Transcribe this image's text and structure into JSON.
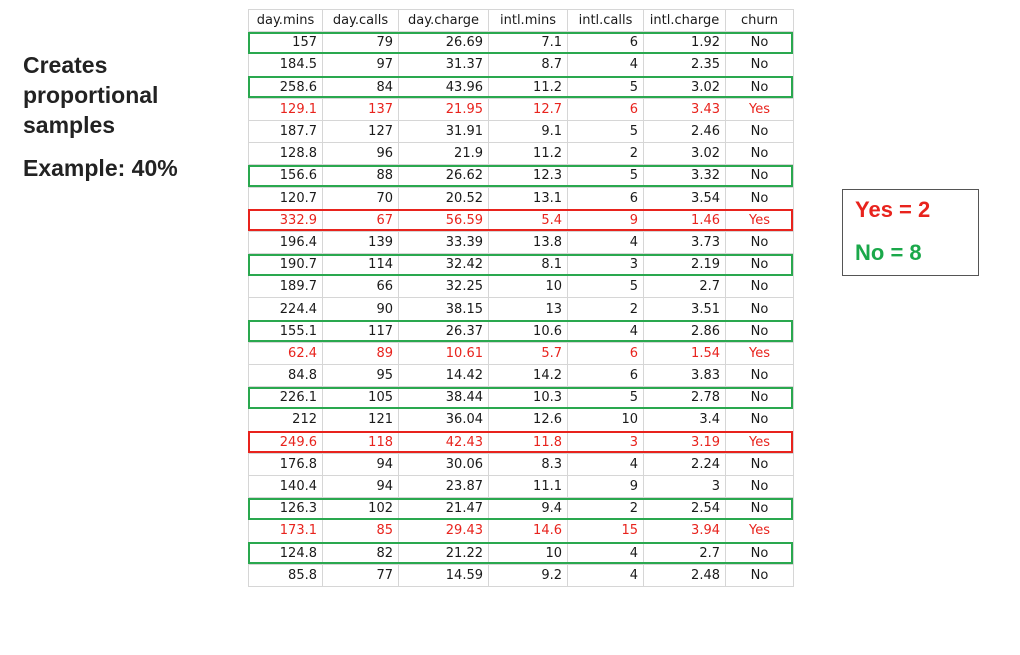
{
  "heading": {
    "lines": [
      "Creates",
      "proportional",
      "samples"
    ],
    "example": "Example: 40%"
  },
  "table": {
    "columns": [
      "day.mins",
      "day.calls",
      "day.charge",
      "intl.mins",
      "intl.calls",
      "intl.charge",
      "churn"
    ],
    "rows": [
      [
        "157",
        "79",
        "26.69",
        "7.1",
        "6",
        "1.92",
        "No"
      ],
      [
        "184.5",
        "97",
        "31.37",
        "8.7",
        "4",
        "2.35",
        "No"
      ],
      [
        "258.6",
        "84",
        "43.96",
        "11.2",
        "5",
        "3.02",
        "No"
      ],
      [
        "129.1",
        "137",
        "21.95",
        "12.7",
        "6",
        "3.43",
        "Yes"
      ],
      [
        "187.7",
        "127",
        "31.91",
        "9.1",
        "5",
        "2.46",
        "No"
      ],
      [
        "128.8",
        "96",
        "21.9",
        "11.2",
        "2",
        "3.02",
        "No"
      ],
      [
        "156.6",
        "88",
        "26.62",
        "12.3",
        "5",
        "3.32",
        "No"
      ],
      [
        "120.7",
        "70",
        "20.52",
        "13.1",
        "6",
        "3.54",
        "No"
      ],
      [
        "332.9",
        "67",
        "56.59",
        "5.4",
        "9",
        "1.46",
        "Yes"
      ],
      [
        "196.4",
        "139",
        "33.39",
        "13.8",
        "4",
        "3.73",
        "No"
      ],
      [
        "190.7",
        "114",
        "32.42",
        "8.1",
        "3",
        "2.19",
        "No"
      ],
      [
        "189.7",
        "66",
        "32.25",
        "10",
        "5",
        "2.7",
        "No"
      ],
      [
        "224.4",
        "90",
        "38.15",
        "13",
        "2",
        "3.51",
        "No"
      ],
      [
        "155.1",
        "117",
        "26.37",
        "10.6",
        "4",
        "2.86",
        "No"
      ],
      [
        "62.4",
        "89",
        "10.61",
        "5.7",
        "6",
        "1.54",
        "Yes"
      ],
      [
        "84.8",
        "95",
        "14.42",
        "14.2",
        "6",
        "3.83",
        "No"
      ],
      [
        "226.1",
        "105",
        "38.44",
        "10.3",
        "5",
        "2.78",
        "No"
      ],
      [
        "212",
        "121",
        "36.04",
        "12.6",
        "10",
        "3.4",
        "No"
      ],
      [
        "249.6",
        "118",
        "42.43",
        "11.8",
        "3",
        "3.19",
        "Yes"
      ],
      [
        "176.8",
        "94",
        "30.06",
        "8.3",
        "4",
        "2.24",
        "No"
      ],
      [
        "140.4",
        "94",
        "23.87",
        "11.1",
        "9",
        "3",
        "No"
      ],
      [
        "126.3",
        "102",
        "21.47",
        "9.4",
        "2",
        "2.54",
        "No"
      ],
      [
        "173.1",
        "85",
        "29.43",
        "14.6",
        "15",
        "3.94",
        "Yes"
      ],
      [
        "124.8",
        "82",
        "21.22",
        "10",
        "4",
        "2.7",
        "No"
      ],
      [
        "85.8",
        "77",
        "14.59",
        "9.2",
        "4",
        "2.48",
        "No"
      ]
    ],
    "yes_rows": [
      3,
      8,
      14,
      18,
      22
    ],
    "sampled_no_rows": [
      0,
      2,
      6,
      10,
      13,
      16,
      21,
      23
    ],
    "sampled_yes_rows": [
      8,
      18
    ]
  },
  "legend": {
    "yes_text": "Yes = 2",
    "no_text": "No = 8"
  },
  "colors": {
    "yes": "#e8231d",
    "no": "#1aa84a",
    "sample_no_border": "#2aa84f",
    "sample_yes_border": "#e8231d"
  }
}
